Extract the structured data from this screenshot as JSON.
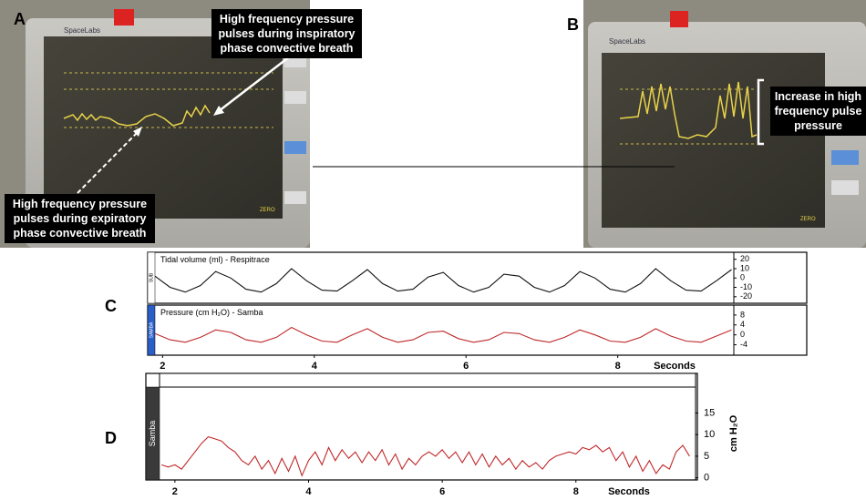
{
  "panels": {
    "a": "A",
    "b": "B",
    "c": "C",
    "d": "D"
  },
  "annotations": {
    "a_top": "High frequency pressure pulses during inspiratory phase convective breath",
    "a_bottom": "High frequency pressure pulses during expiratory phase convective breath",
    "b_right": "Increase in high frequency pulse pressure"
  },
  "monitor": {
    "brand": "SpaceLabs",
    "button": "ZERO"
  },
  "chart_data": [
    {
      "type": "line",
      "title": "Tidal volume (ml) - Respitrace",
      "side_label": "SUB",
      "color": "#111111",
      "x": [
        1.9,
        2.1,
        2.3,
        2.5,
        2.7,
        2.9,
        3.1,
        3.3,
        3.5,
        3.7,
        3.9,
        4.1,
        4.3,
        4.5,
        4.7,
        4.9,
        5.1,
        5.3,
        5.5,
        5.7,
        5.9,
        6.1,
        6.3,
        6.5,
        6.7,
        6.9,
        7.1,
        7.3,
        7.5,
        7.7,
        7.9,
        8.1,
        8.3,
        8.5,
        8.7,
        8.9,
        9.1,
        9.3,
        9.5
      ],
      "values": [
        2,
        -10,
        -15,
        -8,
        7,
        0,
        -12,
        -15,
        -6,
        10,
        -3,
        -13,
        -14,
        -3,
        9,
        -6,
        -14,
        -12,
        1,
        6,
        -8,
        -15,
        -10,
        4,
        2,
        -10,
        -15,
        -8,
        7,
        0,
        -12,
        -15,
        -6,
        10,
        -3,
        -13,
        -14,
        -3,
        9
      ],
      "xlim": [
        1.9,
        9.53
      ],
      "ylim": [
        -27,
        27.5
      ],
      "yticks": [
        20,
        10,
        0,
        -10,
        -20
      ]
    },
    {
      "type": "line",
      "title": "Pressure (cm H₂O) - Samba",
      "side_label": "SAMBA",
      "color": "#c0282a",
      "x": [
        1.9,
        2.1,
        2.3,
        2.5,
        2.7,
        2.9,
        3.1,
        3.3,
        3.5,
        3.7,
        3.9,
        4.1,
        4.3,
        4.5,
        4.7,
        4.9,
        5.1,
        5.3,
        5.5,
        5.7,
        5.9,
        6.1,
        6.3,
        6.5,
        6.7,
        6.9,
        7.1,
        7.3,
        7.5,
        7.7,
        7.9,
        8.1,
        8.3,
        8.5,
        8.7,
        8.9,
        9.1,
        9.3,
        9.5
      ],
      "values": [
        0.5,
        -2,
        -3,
        -1,
        2,
        1,
        -2,
        -3,
        -1,
        3,
        0,
        -2.5,
        -3,
        0,
        2.5,
        -1,
        -3,
        -2,
        1,
        1.5,
        -1.5,
        -3,
        -2,
        1,
        0.5,
        -2,
        -3,
        -1,
        2,
        0,
        -2.5,
        -3,
        -1,
        2.5,
        -0.5,
        -2.5,
        -3,
        -0.5,
        2
      ],
      "xlim": [
        1.9,
        9.53
      ],
      "ylim": [
        -8.2,
        12
      ],
      "yticks": [
        8,
        4,
        0,
        -4
      ],
      "xticks": [
        2,
        4,
        6,
        8
      ],
      "xlabel": "Seconds"
    },
    {
      "type": "line",
      "side_label": "Samba",
      "ylabel": "cm H₂O",
      "color": "#c0282a",
      "x": [
        1.8,
        1.9,
        2.0,
        2.1,
        2.2,
        2.3,
        2.4,
        2.5,
        2.6,
        2.7,
        2.8,
        2.9,
        3.0,
        3.1,
        3.2,
        3.3,
        3.4,
        3.5,
        3.6,
        3.7,
        3.8,
        3.9,
        4.0,
        4.1,
        4.2,
        4.3,
        4.4,
        4.5,
        4.6,
        4.7,
        4.8,
        4.9,
        5.0,
        5.1,
        5.2,
        5.3,
        5.4,
        5.5,
        5.6,
        5.7,
        5.8,
        5.9,
        6.0,
        6.1,
        6.2,
        6.3,
        6.4,
        6.5,
        6.6,
        6.7,
        6.8,
        6.9,
        7.0,
        7.1,
        7.2,
        7.3,
        7.4,
        7.5,
        7.6,
        7.7,
        7.8,
        7.9,
        8.0,
        8.1,
        8.2,
        8.3,
        8.4,
        8.5,
        8.6,
        8.7,
        8.8,
        8.9,
        9.0,
        9.1,
        9.2,
        9.3,
        9.4,
        9.5,
        9.6,
        9.7
      ],
      "values": [
        3,
        2.5,
        3,
        2,
        4,
        6,
        8,
        9.5,
        9,
        8.5,
        7,
        6,
        4,
        3,
        5,
        2,
        4,
        1,
        4.5,
        1.5,
        5,
        0.5,
        4,
        6,
        3,
        7,
        4,
        6.5,
        4.5,
        6,
        3.5,
        6,
        4,
        6.5,
        3,
        5.5,
        2,
        4.5,
        3,
        5,
        6,
        5,
        6.5,
        4.5,
        6,
        3.5,
        6,
        3,
        5.5,
        2.5,
        5,
        3,
        4.5,
        2,
        4,
        2.5,
        3.5,
        2,
        4,
        5,
        5.5,
        6,
        5.5,
        7,
        6.5,
        7.5,
        6,
        7,
        4,
        6,
        2.5,
        5,
        1.5,
        4,
        1,
        3,
        2,
        6,
        7.5,
        5
      ],
      "xlim": [
        1.77,
        9.79
      ],
      "ylim": [
        -0.5,
        21
      ],
      "yticks": [
        0,
        5,
        10,
        15
      ],
      "xticks": [
        2,
        4,
        6,
        8
      ],
      "xlabel": "Seconds"
    }
  ]
}
